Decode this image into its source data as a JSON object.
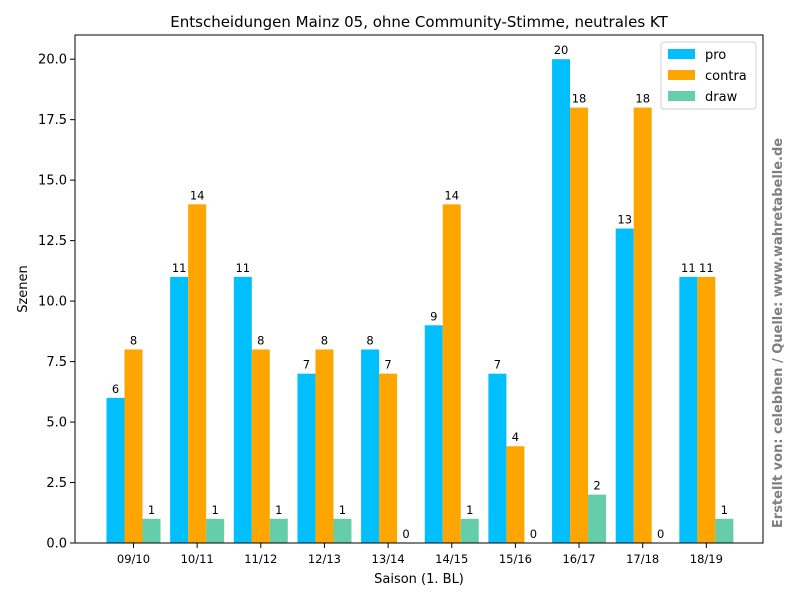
{
  "chart_data": {
    "type": "bar",
    "title": "Entscheidungen Mainz 05, ohne Community-Stimme, neutrales KT",
    "xlabel": "Saison (1. BL)",
    "ylabel": "Szenen",
    "side_text": "Erstellt von: celebhen / Quelle: www.wahretabelle.de",
    "categories": [
      "09/10",
      "10/11",
      "11/12",
      "12/13",
      "13/14",
      "14/15",
      "15/16",
      "16/17",
      "17/18",
      "18/19"
    ],
    "series": [
      {
        "name": "pro",
        "color": "#00bfff",
        "values": [
          6,
          11,
          11,
          7,
          8,
          9,
          7,
          20,
          13,
          11
        ]
      },
      {
        "name": "contra",
        "color": "#ffa500",
        "values": [
          8,
          14,
          8,
          8,
          7,
          14,
          4,
          18,
          18,
          11
        ]
      },
      {
        "name": "draw",
        "color": "#66cdaa",
        "values": [
          1,
          1,
          1,
          1,
          0,
          1,
          0,
          2,
          0,
          1
        ]
      }
    ],
    "ylim": [
      0,
      21
    ],
    "yticks": [
      "0.0",
      "2.5",
      "5.0",
      "7.5",
      "10.0",
      "12.5",
      "15.0",
      "17.5",
      "20.0"
    ],
    "legend_position": "top-right",
    "grid": false
  }
}
